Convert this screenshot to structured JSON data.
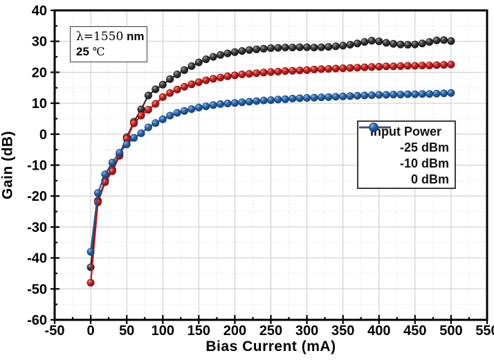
{
  "figure": {
    "background": "#ffffff"
  },
  "annotation": {
    "wavelength": "λ=1550",
    "wavelength_unit": "nm",
    "temperature": "25",
    "temperature_unit": "℃"
  },
  "legend": {
    "title": "Input Power",
    "entries": [
      {
        "label": "-25 dBm",
        "color": "#3a3a3a"
      },
      {
        "label": "-10 dBm",
        "color": "#cf1d1d"
      },
      {
        "label": "  0 dBm",
        "color": "#2565ad"
      }
    ]
  },
  "chart_data": {
    "type": "line",
    "title": "",
    "xlabel": "Bias Current (mA)",
    "ylabel": "Gain (dB)",
    "xlim": [
      -50,
      550
    ],
    "ylim": [
      -60,
      40
    ],
    "x_ticks": [
      -50,
      0,
      50,
      100,
      150,
      200,
      250,
      300,
      350,
      400,
      450,
      500,
      550
    ],
    "y_ticks": [
      -60,
      -50,
      -40,
      -30,
      -20,
      -10,
      0,
      10,
      20,
      30,
      40
    ],
    "x_minor_step": 25,
    "y_minor_step": 5,
    "grid": true,
    "legend_position": "inside-right",
    "x": [
      0,
      10,
      20,
      30,
      40,
      50,
      60,
      70,
      80,
      90,
      100,
      110,
      120,
      130,
      140,
      150,
      160,
      170,
      180,
      190,
      200,
      210,
      220,
      230,
      240,
      250,
      260,
      270,
      280,
      290,
      300,
      310,
      320,
      330,
      340,
      350,
      360,
      370,
      380,
      390,
      400,
      410,
      420,
      430,
      440,
      450,
      460,
      470,
      480,
      490,
      500
    ],
    "series": [
      {
        "name": "-25 dBm",
        "color": "#3a3a3a",
        "line": "#2b2b2b",
        "edge": "#141414",
        "highlight": "#9e9e9e",
        "values": [
          -43,
          -21.5,
          -15,
          -11.5,
          -6.5,
          -1,
          4,
          8,
          12.5,
          14.5,
          16,
          17.8,
          19.3,
          20.7,
          22,
          23.2,
          24.2,
          25,
          25.6,
          26.1,
          26.5,
          26.9,
          27.2,
          27.4,
          27.6,
          27.8,
          27.9,
          28,
          28,
          28.1,
          28.1,
          28,
          28.1,
          28.2,
          28.4,
          28.6,
          28.9,
          29.3,
          29.8,
          30.2,
          30,
          29.5,
          29.2,
          29,
          28.9,
          29,
          29.3,
          29.8,
          30.3,
          30.4,
          30.1
        ]
      },
      {
        "name": "-10 dBm",
        "color": "#cf1d1d",
        "line": "#c01515",
        "edge": "#7c0e0e",
        "highlight": "#f2907f",
        "values": [
          -48,
          -22,
          -15.5,
          -12,
          -7,
          -1.5,
          3.5,
          6,
          7.9,
          9.8,
          12,
          13.3,
          14.4,
          15.3,
          16.1,
          16.8,
          17.4,
          17.9,
          18.3,
          18.7,
          19,
          19.3,
          19.5,
          19.7,
          19.9,
          20.1,
          20.2,
          20.4,
          20.5,
          20.6,
          20.7,
          20.9,
          21,
          21.1,
          21.2,
          21.3,
          21.4,
          21.5,
          21.6,
          21.7,
          21.8,
          21.9,
          21.9,
          22,
          22.1,
          22.1,
          22.2,
          22.2,
          22.3,
          22.4,
          22.5
        ]
      },
      {
        "name": "0 dBm",
        "color": "#2565ad",
        "line": "#1f5698",
        "edge": "#133d72",
        "highlight": "#8db7e6",
        "values": [
          -38,
          -19,
          -13,
          -9.2,
          -6,
          -3.3,
          -1.2,
          0.3,
          2.2,
          3.6,
          4.8,
          6,
          6.9,
          7.5,
          8.1,
          8.6,
          9,
          9.4,
          9.7,
          9.9,
          10.1,
          10.3,
          10.5,
          10.7,
          10.9,
          11,
          11.2,
          11.3,
          11.5,
          11.6,
          11.7,
          11.8,
          11.9,
          12,
          12.1,
          12.2,
          12.3,
          12.4,
          12.5,
          12.6,
          12.7,
          12.7,
          12.8,
          12.8,
          12.9,
          12.9,
          13,
          13,
          13.1,
          13.2,
          13.3
        ]
      }
    ]
  }
}
